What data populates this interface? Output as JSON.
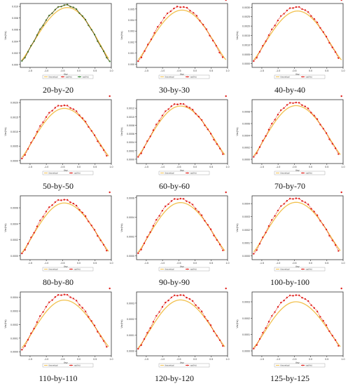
{
  "figure": {
    "panels": [
      {
        "caption": "20-by-20"
      },
      {
        "caption": "30-by-30"
      },
      {
        "caption": "40-by-40"
      },
      {
        "caption": "50-by-50"
      },
      {
        "caption": "60-by-60"
      },
      {
        "caption": "70-by-70"
      },
      {
        "caption": "80-by-80"
      },
      {
        "caption": "90-by-90"
      },
      {
        "caption": "100-by-100"
      },
      {
        "caption": "110-by-110"
      },
      {
        "caption": "120-by-120"
      },
      {
        "caption": "125-by-125"
      }
    ]
  },
  "colors": {
    "theory": "#f2c14e",
    "refined": "#e0201b",
    "coarse": "#1e7a1e",
    "axis": "#333333",
    "plot_bg": "#ffffff"
  },
  "chart_data": [
    {
      "type": "line",
      "xlabel": "ilsy",
      "ylabel": "Var(Hx)",
      "xlim": [
        -1.8,
        1.0
      ],
      "ylim": [
        -0.0005,
        0.0105
      ],
      "xticks": [
        "-1.5",
        "-1.0",
        "-0.5",
        "0.0",
        "0.5",
        "1.0"
      ],
      "yticks": [
        "0.000",
        "0.002",
        "0.004",
        "0.006",
        "0.008",
        "0.010"
      ],
      "legend": [
        "theoretical",
        "var(Hx)",
        "var(Hx)"
      ],
      "peak_x": -0.4,
      "theory_peak": 0.0098,
      "theory_end": 0.0008,
      "data_peak": 0.0102,
      "data_end": 0.0005,
      "n_points": 30,
      "third_series": true
    },
    {
      "type": "line",
      "xlabel": "ilsy",
      "ylabel": "Var(Hx)",
      "xlim": [
        -1.8,
        1.0
      ],
      "ylim": [
        -0.0003,
        0.0055
      ],
      "xticks": [
        "-1.5",
        "-1.0",
        "-0.5",
        "0.0",
        "0.5",
        "1.0"
      ],
      "yticks": [
        "0.000",
        "0.001",
        "0.002",
        "0.003",
        "0.004",
        "0.005"
      ],
      "legend": [
        "theoretical",
        "var(Hx)"
      ],
      "peak_x": -0.45,
      "theory_peak": 0.0049,
      "theory_end": 0.0004,
      "data_peak": 0.0052,
      "data_end": 0.0002,
      "n_points": 28,
      "third_series": false
    },
    {
      "type": "line",
      "xlabel": "ilsy",
      "ylabel": "Var(Hx)",
      "xlim": [
        -1.8,
        1.0
      ],
      "ylim": [
        -0.0002,
        0.0032
      ],
      "xticks": [
        "-1.5",
        "-1.0",
        "-0.5",
        "0.0",
        "0.5",
        "1.0"
      ],
      "yticks": [
        "0.0000",
        "0.0005",
        "0.0010",
        "0.0015",
        "0.0020",
        "0.0025",
        "0.0030"
      ],
      "legend": [
        "theoretical",
        "var(Hx)"
      ],
      "peak_x": -0.45,
      "theory_peak": 0.0028,
      "theory_end": 0.0002,
      "data_peak": 0.003,
      "data_end": 0.0001,
      "n_points": 30,
      "third_series": false
    },
    {
      "type": "line",
      "xlabel": "ilsy",
      "ylabel": "Var(Hx)",
      "xlim": [
        -1.8,
        1.0
      ],
      "ylim": [
        -0.0001,
        0.0021
      ],
      "xticks": [
        "-1.5",
        "-1.0",
        "-0.5",
        "0.0",
        "0.5",
        "1.0"
      ],
      "yticks": [
        "0.0000",
        "0.0005",
        "0.0010",
        "0.0015",
        "0.0020"
      ],
      "legend": [
        "theoretical",
        "var(Hx)"
      ],
      "peak_x": -0.5,
      "theory_peak": 0.0018,
      "theory_end": 0.00012,
      "data_peak": 0.0019,
      "data_end": 5e-05,
      "n_points": 30,
      "third_series": false
    },
    {
      "type": "line",
      "xlabel": "ilsy",
      "ylabel": "Var(Hx)",
      "xlim": [
        -1.8,
        1.0
      ],
      "ylim": [
        -0.0001,
        0.0014
      ],
      "xticks": [
        "-1.5",
        "-1.0",
        "-0.5",
        "0.0",
        "0.5",
        "1.0"
      ],
      "yticks": [
        "0.0000",
        "0.0002",
        "0.0004",
        "0.0006",
        "0.0008",
        "0.0010",
        "0.0012"
      ],
      "legend": [
        "theoretical",
        "var(Hx)"
      ],
      "peak_x": -0.5,
      "theory_peak": 0.00125,
      "theory_end": 8e-05,
      "data_peak": 0.0013,
      "data_end": 4e-05,
      "n_points": 30,
      "third_series": false
    },
    {
      "type": "line",
      "xlabel": "ilsy",
      "ylabel": "Var(Hx)",
      "xlim": [
        -1.8,
        1.0
      ],
      "ylim": [
        -7e-05,
        0.001
      ],
      "xticks": [
        "-1.5",
        "-1.0",
        "-0.5",
        "0.0",
        "0.5",
        "1.0"
      ],
      "yticks": [
        "0.0000",
        "0.0002",
        "0.0004",
        "0.0006",
        "0.0008"
      ],
      "legend": [
        "theoretical",
        "var(Hx)"
      ],
      "peak_x": -0.5,
      "theory_peak": 0.0009,
      "theory_end": 6e-05,
      "data_peak": 0.00095,
      "data_end": 3e-05,
      "n_points": 30,
      "third_series": false
    },
    {
      "type": "line",
      "xlabel": "ilsy",
      "ylabel": "Var(Hx)",
      "xlim": [
        -1.8,
        1.0
      ],
      "ylim": [
        -5e-05,
        0.00075
      ],
      "xticks": [
        "-1.5",
        "-1.0",
        "-0.5",
        "0.0",
        "0.5",
        "1.0"
      ],
      "yticks": [
        "0.0000",
        "0.0002",
        "0.0004",
        "0.0006"
      ],
      "legend": [
        "theoretical",
        "var(Hx)"
      ],
      "peak_x": -0.5,
      "theory_peak": 0.00066,
      "theory_end": 4e-05,
      "data_peak": 0.0007,
      "data_end": 2e-05,
      "n_points": 30,
      "third_series": false
    },
    {
      "type": "line",
      "xlabel": "ilsy",
      "ylabel": "Var(Hx)",
      "xlim": [
        -1.8,
        1.0
      ],
      "ylim": [
        -4e-05,
        0.00062
      ],
      "xticks": [
        "-1.5",
        "-1.0",
        "-0.5",
        "0.0",
        "0.5",
        "1.0"
      ],
      "yticks": [
        "0.0000",
        "0.0002",
        "0.0004",
        "0.0006"
      ],
      "legend": [
        "theoretical",
        "var(Hx)"
      ],
      "peak_x": -0.5,
      "theory_peak": 0.00055,
      "theory_end": 4e-05,
      "data_peak": 0.00059,
      "data_end": 2e-05,
      "n_points": 30,
      "third_series": false
    },
    {
      "type": "line",
      "xlabel": "ilsy",
      "ylabel": "Var(Hx)",
      "xlim": [
        -1.8,
        1.0
      ],
      "ylim": [
        -3e-05,
        0.00046
      ],
      "xticks": [
        "-1.5",
        "-1.0",
        "-0.5",
        "0.0",
        "0.5",
        "1.0"
      ],
      "yticks": [
        "0.0000",
        "0.0001",
        "0.0002",
        "0.0003",
        "0.0004"
      ],
      "legend": [
        "theoretical",
        "var(Hx)"
      ],
      "peak_x": -0.5,
      "theory_peak": 0.00041,
      "theory_end": 3e-05,
      "data_peak": 0.00044,
      "data_end": 1e-05,
      "n_points": 30,
      "third_series": false
    },
    {
      "type": "line",
      "xlabel": "ilsy",
      "ylabel": "Var(Hx)",
      "xlim": [
        -1.8,
        1.0
      ],
      "ylim": [
        -3e-05,
        0.00044
      ],
      "xticks": [
        "-1.5",
        "-1.0",
        "-0.5",
        "0.0",
        "0.5",
        "1.0"
      ],
      "yticks": [
        "0.0000",
        "0.0001",
        "0.0002",
        "0.0003",
        "0.0004"
      ],
      "legend": [
        "theoretical",
        "var(Hx)"
      ],
      "peak_x": -0.5,
      "theory_peak": 0.00038,
      "theory_end": 3e-05,
      "data_peak": 0.00042,
      "data_end": 1e-05,
      "n_points": 30,
      "third_series": false
    },
    {
      "type": "line",
      "xlabel": "ilsy",
      "ylabel": "Var(Hx)",
      "xlim": [
        -1.8,
        1.0
      ],
      "ylim": [
        -3e-05,
        0.00037
      ],
      "xticks": [
        "-1.5",
        "-1.0",
        "-0.5",
        "0.0",
        "0.5",
        "1.0"
      ],
      "yticks": [
        "0.0000",
        "0.0001",
        "0.0002",
        "0.0003"
      ],
      "legend": [
        "theoretical",
        "var(Hx)"
      ],
      "peak_x": -0.5,
      "theory_peak": 0.00032,
      "theory_end": 2e-05,
      "data_peak": 0.00035,
      "data_end": 1e-05,
      "n_points": 30,
      "third_series": false
    },
    {
      "type": "line",
      "xlabel": "ilsy",
      "ylabel": "Var(Hx)",
      "xlim": [
        -1.8,
        1.0
      ],
      "ylim": [
        -3e-05,
        0.00036
      ],
      "xticks": [
        "-1.5",
        "-1.0",
        "-0.5",
        "0.0",
        "0.5",
        "1.0"
      ],
      "yticks": [
        "0.0000",
        "0.0001",
        "0.0002",
        "0.0003"
      ],
      "legend": [
        "theoretical",
        "var(Hx)"
      ],
      "peak_x": -0.5,
      "theory_peak": 0.0003,
      "theory_end": 2e-05,
      "data_peak": 0.00034,
      "data_end": 1e-05,
      "n_points": 30,
      "third_series": false
    }
  ]
}
